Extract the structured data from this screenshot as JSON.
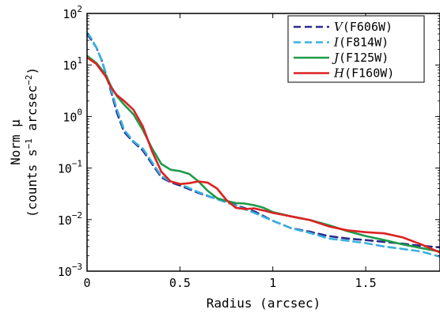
{
  "chart_data": {
    "type": "line",
    "xlabel": "Radius (arcsec)",
    "ylabel_line1": "Norm μ",
    "ylabel_line2_prefix": "(counts s",
    "ylabel_line2_exp1": "−1",
    "ylabel_line2_mid": " arcsec",
    "ylabel_line2_exp2": "−2",
    "ylabel_line2_suffix": ")",
    "xlim": [
      0,
      1.9
    ],
    "ylim": [
      0.001,
      100
    ],
    "yscale": "log",
    "xticks": [
      {
        "value": 0,
        "label": "0"
      },
      {
        "value": 0.5,
        "label": "0.5"
      },
      {
        "value": 1,
        "label": "1"
      },
      {
        "value": 1.5,
        "label": "1.5"
      }
    ],
    "yticks": [
      {
        "value": 0.001,
        "base": "10",
        "exp": "−3"
      },
      {
        "value": 0.01,
        "base": "10",
        "exp": "−2"
      },
      {
        "value": 0.1,
        "base": "10",
        "exp": "−1"
      },
      {
        "value": 1,
        "base": "10",
        "exp": "0"
      },
      {
        "value": 10,
        "base": "10",
        "exp": "1"
      },
      {
        "value": 100,
        "base": "10",
        "exp": "2"
      }
    ],
    "grid": false,
    "legend_position": "top-right",
    "series": [
      {
        "name": "V(F606W)",
        "band": "V",
        "filter": "(F606W)",
        "color": "#2b2b8c",
        "dash": "dashed",
        "x": [
          0.0,
          0.02,
          0.05,
          0.08,
          0.1,
          0.13,
          0.16,
          0.2,
          0.25,
          0.3,
          0.35,
          0.4,
          0.45,
          0.5,
          0.6,
          0.7,
          0.8,
          0.9,
          1.0,
          1.1,
          1.2,
          1.3,
          1.4,
          1.5,
          1.6,
          1.7,
          1.8,
          1.9
        ],
        "y": [
          40,
          32,
          22,
          12,
          7,
          3.0,
          1.2,
          0.5,
          0.32,
          0.22,
          0.12,
          0.066,
          0.053,
          0.046,
          0.033,
          0.025,
          0.019,
          0.0145,
          0.0095,
          0.0068,
          0.0058,
          0.0048,
          0.0043,
          0.004,
          0.0037,
          0.0034,
          0.0031,
          0.0029
        ]
      },
      {
        "name": "I(F814W)",
        "band": "I",
        "filter": "(F814W)",
        "color": "#3ab0e0",
        "dash": "dashed",
        "x": [
          0.0,
          0.02,
          0.05,
          0.08,
          0.1,
          0.13,
          0.16,
          0.2,
          0.25,
          0.3,
          0.35,
          0.4,
          0.45,
          0.5,
          0.6,
          0.7,
          0.8,
          0.9,
          1.0,
          1.1,
          1.2,
          1.3,
          1.4,
          1.5,
          1.6,
          1.7,
          1.8,
          1.9
        ],
        "y": [
          42,
          34,
          22,
          12,
          7,
          3.3,
          1.4,
          0.55,
          0.33,
          0.24,
          0.13,
          0.07,
          0.055,
          0.049,
          0.034,
          0.025,
          0.0185,
          0.0135,
          0.0095,
          0.0068,
          0.0055,
          0.0043,
          0.0039,
          0.0035,
          0.003,
          0.0027,
          0.0024,
          0.0019
        ]
      },
      {
        "name": "J(F125W)",
        "band": "J",
        "filter": "(F125W)",
        "color": "#1e9a4a",
        "dash": "solid",
        "x": [
          0.0,
          0.05,
          0.1,
          0.13,
          0.16,
          0.2,
          0.25,
          0.3,
          0.35,
          0.4,
          0.45,
          0.5,
          0.55,
          0.6,
          0.65,
          0.7,
          0.75,
          0.8,
          0.85,
          0.9,
          0.95,
          1.0,
          1.1,
          1.2,
          1.3,
          1.4,
          1.5,
          1.6,
          1.7,
          1.8,
          1.9
        ],
        "y": [
          15,
          11,
          6.5,
          3.8,
          2.5,
          1.7,
          1.1,
          0.55,
          0.24,
          0.12,
          0.093,
          0.087,
          0.077,
          0.055,
          0.036,
          0.026,
          0.023,
          0.021,
          0.0205,
          0.019,
          0.017,
          0.014,
          0.0115,
          0.0098,
          0.0078,
          0.006,
          0.0048,
          0.004,
          0.0033,
          0.0028,
          0.0024
        ]
      },
      {
        "name": "H(F160W)",
        "band": "H",
        "filter": "(F160W)",
        "color": "#dd2222",
        "dash": "solid",
        "x": [
          0.0,
          0.05,
          0.1,
          0.13,
          0.16,
          0.2,
          0.25,
          0.3,
          0.35,
          0.4,
          0.45,
          0.5,
          0.55,
          0.6,
          0.65,
          0.7,
          0.75,
          0.8,
          0.85,
          0.9,
          0.95,
          1.0,
          1.05,
          1.1,
          1.2,
          1.3,
          1.4,
          1.5,
          1.6,
          1.7,
          1.8,
          1.9
        ],
        "y": [
          14,
          10.5,
          6.0,
          3.6,
          2.6,
          2.0,
          1.35,
          0.65,
          0.21,
          0.085,
          0.055,
          0.049,
          0.051,
          0.055,
          0.052,
          0.04,
          0.024,
          0.017,
          0.016,
          0.0165,
          0.015,
          0.0135,
          0.0125,
          0.0115,
          0.0098,
          0.0074,
          0.0062,
          0.0057,
          0.0054,
          0.0045,
          0.0033,
          0.0023
        ]
      }
    ]
  }
}
